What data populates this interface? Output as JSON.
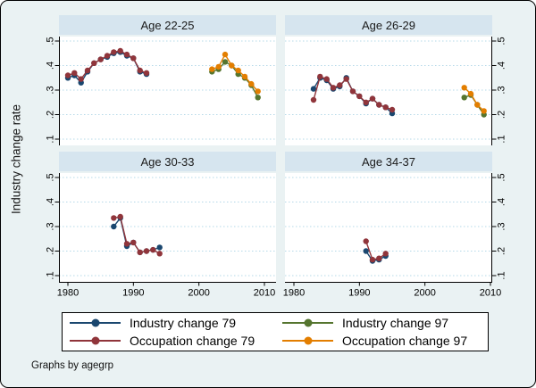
{
  "figure": {
    "background": "#eaf2f3",
    "panel_title_bg": "#d6e5ef",
    "grid_color": "#b5d9e8",
    "axis_color": "#000000"
  },
  "chart_data": {
    "type": "line",
    "title": "",
    "ylabel": "Industry change rate",
    "xlabel": "",
    "note": "Graphs by agegrp",
    "grid": true,
    "legend_position": "bottom",
    "x_ticks": [
      1980,
      1990,
      2000,
      2010
    ],
    "y_ticks": [
      0.1,
      0.2,
      0.3,
      0.4,
      0.5
    ],
    "y_tick_labels": [
      ".1",
      ".2",
      ".3",
      ".4",
      ".5"
    ],
    "xlim": [
      1978.6,
      2011.8
    ],
    "ylim": [
      0.08,
      0.52
    ],
    "legend": [
      {
        "label": "Industry change 79",
        "color": "#1a476f"
      },
      {
        "label": "Occupation change 79",
        "color": "#90353b"
      },
      {
        "label": "Industry change 97",
        "color": "#55752f"
      },
      {
        "label": "Occupation change 97",
        "color": "#e37e00"
      }
    ],
    "panels": [
      {
        "title": "Age 22-25",
        "series": [
          {
            "name": "Industry change 79",
            "color": "#1a476f",
            "x": [
              1980,
              1981,
              1982,
              1983,
              1984,
              1985,
              1986,
              1987,
              1988,
              1989,
              1990,
              1991,
              1992
            ],
            "y": [
              0.35,
              0.36,
              0.33,
              0.375,
              0.41,
              0.425,
              0.435,
              0.45,
              0.455,
              0.44,
              0.43,
              0.375,
              0.365
            ]
          },
          {
            "name": "Occupation change 79",
            "color": "#90353b",
            "x": [
              1980,
              1981,
              1982,
              1983,
              1984,
              1985,
              1986,
              1987,
              1988,
              1989,
              1990,
              1991,
              1992
            ],
            "y": [
              0.36,
              0.37,
              0.345,
              0.38,
              0.41,
              0.425,
              0.44,
              0.455,
              0.46,
              0.445,
              0.43,
              0.38,
              0.37
            ]
          },
          {
            "name": "Industry change 97",
            "color": "#55752f",
            "x": [
              2002,
              2003,
              2004,
              2005,
              2006,
              2007,
              2008,
              2009
            ],
            "y": [
              0.375,
              0.385,
              0.415,
              0.4,
              0.365,
              0.35,
              0.32,
              0.27
            ]
          },
          {
            "name": "Occupation change 97",
            "color": "#e37e00",
            "x": [
              2002,
              2003,
              2004,
              2005,
              2006,
              2007,
              2008,
              2009
            ],
            "y": [
              0.385,
              0.395,
              0.445,
              0.4,
              0.38,
              0.355,
              0.325,
              0.295
            ]
          }
        ]
      },
      {
        "title": "Age 26-29",
        "series": [
          {
            "name": "Industry change 79",
            "color": "#1a476f",
            "x": [
              1983,
              1984,
              1985,
              1986,
              1987,
              1988,
              1989,
              1990,
              1991,
              1992,
              1993,
              1994,
              1995
            ],
            "y": [
              0.305,
              0.35,
              0.34,
              0.305,
              0.315,
              0.35,
              0.295,
              0.275,
              0.245,
              0.265,
              0.24,
              0.23,
              0.205
            ]
          },
          {
            "name": "Occupation change 79",
            "color": "#90353b",
            "x": [
              1983,
              1984,
              1985,
              1986,
              1987,
              1988,
              1989,
              1990,
              1991,
              1992,
              1993,
              1994,
              1995
            ],
            "y": [
              0.26,
              0.355,
              0.345,
              0.31,
              0.32,
              0.345,
              0.295,
              0.275,
              0.25,
              0.265,
              0.24,
              0.23,
              0.22
            ]
          },
          {
            "name": "Industry change 97",
            "color": "#55752f",
            "x": [
              2006,
              2007,
              2008,
              2009
            ],
            "y": [
              0.27,
              0.28,
              0.24,
              0.2
            ]
          },
          {
            "name": "Occupation change 97",
            "color": "#e37e00",
            "x": [
              2006,
              2007,
              2008,
              2009
            ],
            "y": [
              0.31,
              0.285,
              0.24,
              0.215
            ]
          }
        ]
      },
      {
        "title": "Age 30-33",
        "series": [
          {
            "name": "Industry change 79",
            "color": "#1a476f",
            "x": [
              1987,
              1988,
              1989,
              1990,
              1991,
              1992,
              1993,
              1994
            ],
            "y": [
              0.3,
              0.335,
              0.22,
              0.235,
              0.195,
              0.2,
              0.205,
              0.215
            ]
          },
          {
            "name": "Occupation change 79",
            "color": "#90353b",
            "x": [
              1987,
              1988,
              1989,
              1990,
              1991,
              1992,
              1993,
              1994
            ],
            "y": [
              0.335,
              0.34,
              0.23,
              0.235,
              0.195,
              0.2,
              0.205,
              0.19
            ]
          }
        ]
      },
      {
        "title": "Age 34-37",
        "series": [
          {
            "name": "Industry change 79",
            "color": "#1a476f",
            "x": [
              1991,
              1992,
              1993,
              1994
            ],
            "y": [
              0.2,
              0.16,
              0.165,
              0.18
            ]
          },
          {
            "name": "Occupation change 79",
            "color": "#90353b",
            "x": [
              1991,
              1992,
              1993,
              1994
            ],
            "y": [
              0.24,
              0.165,
              0.17,
              0.19
            ]
          }
        ]
      }
    ]
  }
}
